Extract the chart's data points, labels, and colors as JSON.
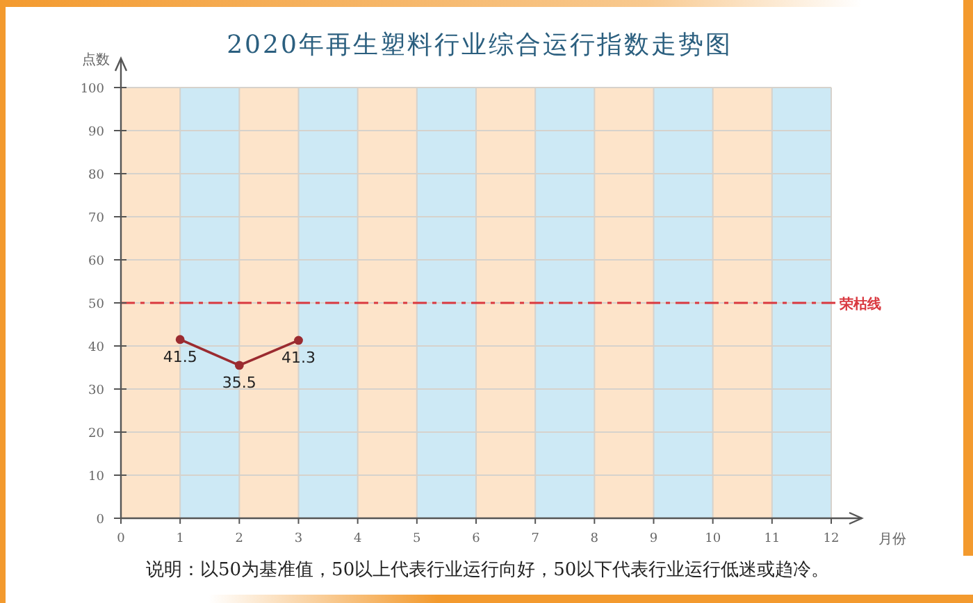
{
  "chart_data": {
    "type": "line",
    "title": "2020年再生塑料行业综合运行指数走势图",
    "xlabel": "月份",
    "ylabel": "点数",
    "x": [
      1,
      2,
      3
    ],
    "series": [
      {
        "color": "#9b2b30",
        "values": [
          41.5,
          35.5,
          41.3
        ]
      }
    ],
    "xlim": [
      0,
      12
    ],
    "xticks": [
      0,
      1,
      2,
      3,
      4,
      5,
      6,
      7,
      8,
      9,
      10,
      11,
      12
    ],
    "ylim": [
      0,
      100
    ],
    "yticks": [
      0,
      10,
      20,
      30,
      40,
      50,
      60,
      70,
      80,
      90,
      100
    ],
    "grid": true,
    "marker": "circle",
    "line_style": "solid",
    "data_labels": true,
    "ref_lines": [
      {
        "axis": "y",
        "value": 50,
        "label": "荣枯线",
        "color": "#d9383f",
        "line_style": "dashed"
      }
    ],
    "bands": [
      {
        "axis": "x",
        "from": 0,
        "to": 1,
        "color": "#fde4ca"
      },
      {
        "axis": "x",
        "from": 1,
        "to": 2,
        "color": "#cde9f5"
      },
      {
        "axis": "x",
        "from": 2,
        "to": 3,
        "color": "#fde4ca"
      },
      {
        "axis": "x",
        "from": 3,
        "to": 4,
        "color": "#cde9f5"
      },
      {
        "axis": "x",
        "from": 4,
        "to": 5,
        "color": "#fde4ca"
      },
      {
        "axis": "x",
        "from": 5,
        "to": 6,
        "color": "#cde9f5"
      },
      {
        "axis": "x",
        "from": 6,
        "to": 7,
        "color": "#fde4ca"
      },
      {
        "axis": "x",
        "from": 7,
        "to": 8,
        "color": "#cde9f5"
      },
      {
        "axis": "x",
        "from": 8,
        "to": 9,
        "color": "#fde4ca"
      },
      {
        "axis": "x",
        "from": 9,
        "to": 10,
        "color": "#cde9f5"
      },
      {
        "axis": "x",
        "from": 10,
        "to": 11,
        "color": "#fde4ca"
      },
      {
        "axis": "x",
        "from": 11,
        "to": 12,
        "color": "#cde9f5"
      }
    ],
    "annotations": [
      "说明：以50为基准值，50以上代表行业运行向好，50以下代表行业运行低迷或趋冷。"
    ]
  }
}
